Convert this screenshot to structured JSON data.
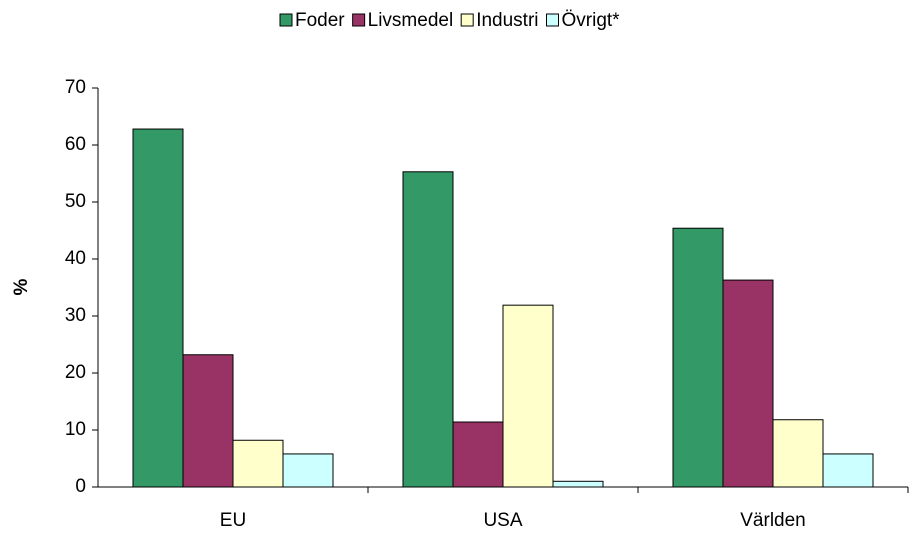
{
  "chart_data": {
    "type": "bar",
    "categories": [
      "EU",
      "USA",
      "Världen"
    ],
    "series": [
      {
        "name": "Foder",
        "color": "#339966",
        "values": [
          62.8,
          55.3,
          45.4
        ]
      },
      {
        "name": "Livsmedel",
        "color": "#993366",
        "values": [
          23.2,
          11.4,
          36.3
        ]
      },
      {
        "name": "Industri",
        "color": "#FFFFCC",
        "values": [
          8.2,
          31.9,
          11.8
        ]
      },
      {
        "name": "Övrigt*",
        "color": "#CCFFFF",
        "values": [
          5.8,
          1.0,
          5.8
        ]
      }
    ],
    "ylabel": "%",
    "ylim": [
      0,
      70
    ],
    "yticks": [
      0,
      10,
      20,
      30,
      40,
      50,
      60,
      70
    ],
    "grid": false,
    "legend": "top"
  }
}
